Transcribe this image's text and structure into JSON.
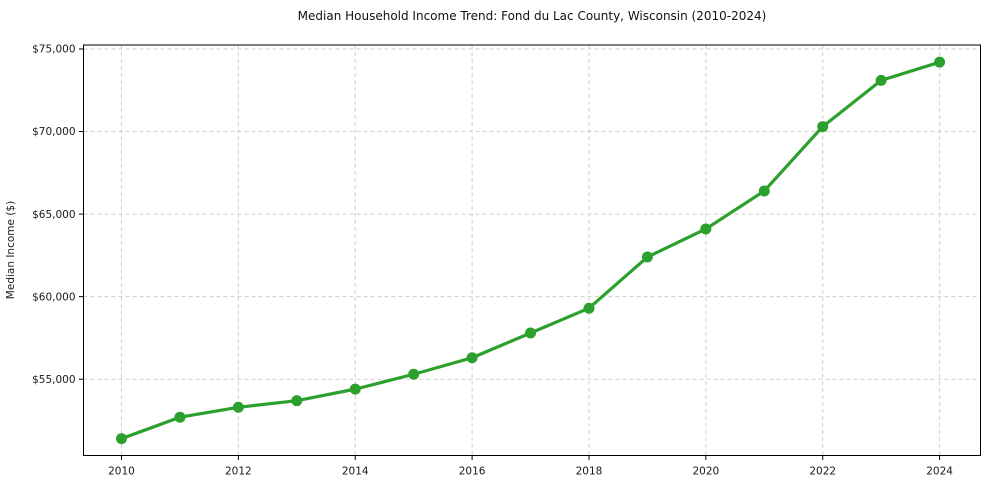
{
  "chart_data": {
    "type": "line",
    "title": "Median Household Income Trend: Fond du Lac County, Wisconsin (2010-2024)",
    "xlabel": "",
    "ylabel": "Median Income ($)",
    "x": [
      2010,
      2011,
      2012,
      2013,
      2014,
      2015,
      2016,
      2017,
      2018,
      2019,
      2020,
      2021,
      2022,
      2023,
      2024
    ],
    "series": [
      {
        "name": "Median Household Income",
        "values": [
          51400,
          52700,
          53300,
          53700,
          54400,
          55300,
          56300,
          57800,
          59300,
          62400,
          64100,
          66400,
          70300,
          73100,
          74200
        ]
      }
    ],
    "x_ticks": [
      2010,
      2012,
      2014,
      2016,
      2018,
      2020,
      2022,
      2024
    ],
    "x_tick_labels": [
      "2010",
      "2012",
      "2014",
      "2016",
      "2018",
      "2020",
      "2022",
      "2024"
    ],
    "y_ticks": [
      55000,
      60000,
      65000,
      70000,
      75000
    ],
    "y_tick_labels": [
      "$55,000",
      "$60,000",
      "$65,000",
      "$70,000",
      "$75,000"
    ],
    "xlim": [
      2009.35,
      2024.7
    ],
    "ylim": [
      50380,
      75240
    ],
    "grid": true,
    "legend": "none",
    "line_color": "#2ca02c",
    "marker": "circle",
    "marker_radius": 5.5,
    "grid_color": "#cfcfcf",
    "background_color": "#ffffff"
  }
}
